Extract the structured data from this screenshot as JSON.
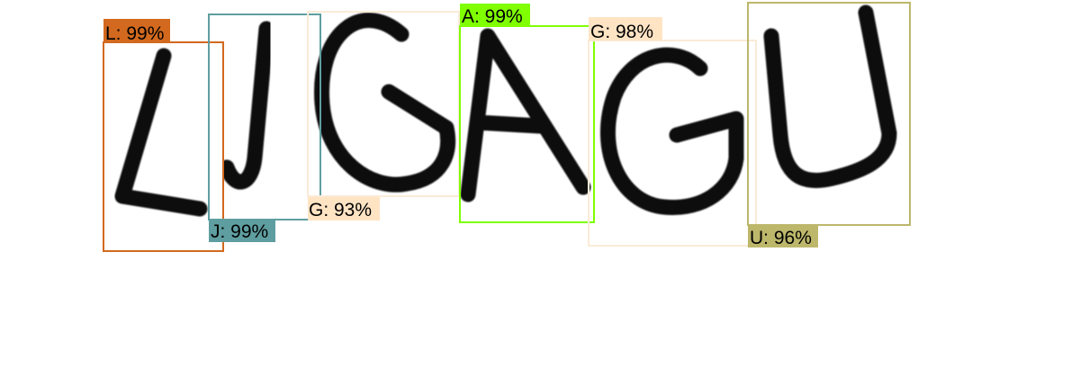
{
  "detections": [
    {
      "label": "L: 99%",
      "color": "#d2691e",
      "fill": "#d2691e"
    },
    {
      "label": "J: 99%",
      "color": "#5f9ea0",
      "fill": "#5f9ea0"
    },
    {
      "label": "G: 93%",
      "color": "#faebd7",
      "fill": "#ffe4c4"
    },
    {
      "label": "A: 99%",
      "color": "#7fff00",
      "fill": "#7fff00"
    },
    {
      "label": "G: 98%",
      "color": "#faebd7",
      "fill": "#ffe4c4"
    },
    {
      "label": "U: 96%",
      "color": "#bdb76b",
      "fill": "#bdb76b"
    }
  ]
}
